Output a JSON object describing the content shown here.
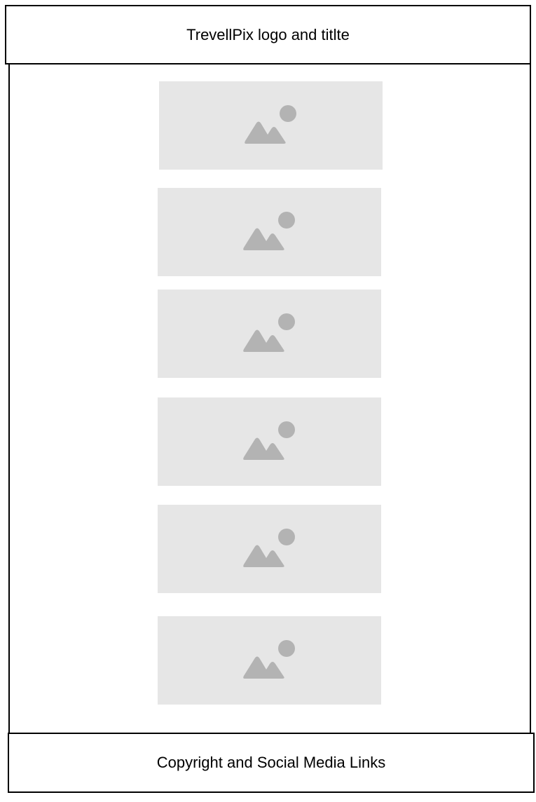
{
  "header": {
    "label": "TrevellPix logo and titlte"
  },
  "footer": {
    "label": "Copyright and Social Media Links"
  },
  "gallery": {
    "items": [
      {
        "icon": "image-placeholder-icon"
      },
      {
        "icon": "image-placeholder-icon"
      },
      {
        "icon": "image-placeholder-icon"
      },
      {
        "icon": "image-placeholder-icon"
      },
      {
        "icon": "image-placeholder-icon"
      },
      {
        "icon": "image-placeholder-icon"
      }
    ]
  },
  "colors": {
    "placeholder_bg": "#e6e6e6",
    "placeholder_icon": "#b3b3b3",
    "border": "#000000"
  }
}
